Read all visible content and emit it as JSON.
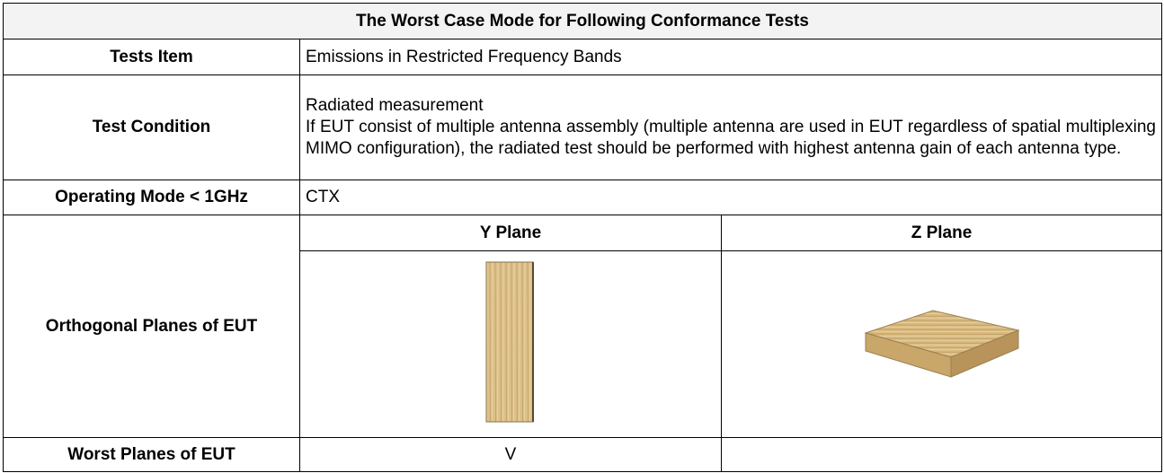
{
  "table": {
    "title": "The Worst Case Mode for Following Conformance Tests",
    "tests_item": {
      "label": "Tests Item",
      "value": "Emissions in Restricted Frequency Bands"
    },
    "test_condition": {
      "label": "Test Condition",
      "lines": [
        "Radiated measurement",
        "If EUT consist of multiple antenna assembly (multiple antenna are used in EUT regardless of spatial multiplexing MIMO configuration), the radiated test should be performed with highest antenna gain of each antenna type."
      ]
    },
    "operating_mode": {
      "label": "Operating Mode < 1GHz",
      "value": "CTX"
    },
    "planes": {
      "label": "Orthogonal Planes of EUT",
      "columns": [
        "Y Plane",
        "Z Plane"
      ]
    },
    "worst_planes": {
      "label": "Worst Planes of EUT",
      "y_plane": "V"
    }
  }
}
